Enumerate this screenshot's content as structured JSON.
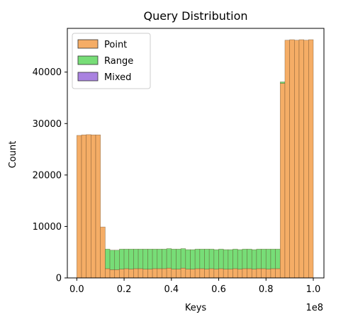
{
  "chart_data": {
    "type": "bar",
    "stacked": true,
    "title": "Query Distribution",
    "xlabel": "Keys",
    "ylabel": "Count",
    "x_offset_label": "1e8",
    "xlim": [
      -0.04,
      1.045
    ],
    "ylim": [
      0,
      48500
    ],
    "x_ticks": [
      0.0,
      0.2,
      0.4,
      0.6,
      0.8,
      1.0
    ],
    "x_tick_labels": [
      "0.0",
      "0.2",
      "0.4",
      "0.6",
      "0.8",
      "1.0"
    ],
    "y_ticks": [
      0,
      10000,
      20000,
      30000,
      40000
    ],
    "y_tick_labels": [
      "0",
      "10000",
      "20000",
      "30000",
      "40000"
    ],
    "bin_edges_start": 0.0,
    "bin_width": 0.02,
    "legend_position": "upper-left",
    "series": [
      {
        "name": "Point",
        "color": "#f5ad66",
        "values": [
          27700,
          27800,
          27850,
          27800,
          27800,
          9900,
          1800,
          1600,
          1600,
          1700,
          1800,
          1700,
          1800,
          1800,
          1700,
          1700,
          1800,
          1800,
          1800,
          1900,
          1700,
          1700,
          1900,
          1700,
          1700,
          1800,
          1800,
          1700,
          1800,
          1700,
          1800,
          1700,
          1700,
          1800,
          1700,
          1800,
          1800,
          1700,
          1800,
          1800,
          1700,
          1800,
          1800,
          37800,
          46200,
          46300,
          46200,
          46300,
          46200,
          46300
        ]
      },
      {
        "name": "Range",
        "color": "#77dd77",
        "values": [
          0,
          0,
          0,
          0,
          0,
          0,
          3800,
          3800,
          3800,
          3900,
          3800,
          3900,
          3800,
          3800,
          3900,
          3900,
          3800,
          3800,
          3800,
          3800,
          3900,
          3900,
          3800,
          3800,
          3800,
          3800,
          3800,
          3900,
          3800,
          3800,
          3800,
          3800,
          3800,
          3800,
          3800,
          3800,
          3800,
          3800,
          3800,
          3800,
          3900,
          3800,
          3800,
          300,
          0,
          0,
          0,
          0,
          0,
          0
        ]
      },
      {
        "name": "Mixed",
        "color": "#a982e0",
        "values": [
          0,
          0,
          0,
          0,
          0,
          0,
          0,
          0,
          0,
          0,
          0,
          0,
          0,
          0,
          0,
          0,
          0,
          0,
          0,
          0,
          0,
          0,
          0,
          0,
          0,
          0,
          0,
          0,
          0,
          0,
          0,
          0,
          0,
          0,
          0,
          0,
          0,
          0,
          0,
          0,
          0,
          0,
          0,
          0,
          0,
          0,
          0,
          0,
          0,
          0
        ]
      }
    ]
  }
}
